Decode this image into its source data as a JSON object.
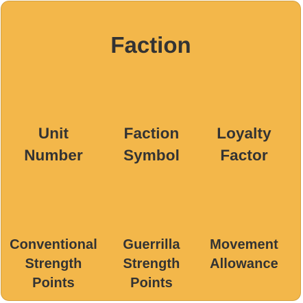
{
  "card": {
    "title": "Faction",
    "row1": [
      "Unit\nNumber",
      "Faction\nSymbol",
      "Loyalty\nFactor"
    ],
    "row2": [
      "Conventional\nStrength\nPoints",
      "Guerrilla\nStrength\nPoints",
      "Movement\nAllowance"
    ]
  },
  "colors": {
    "card_background": "#f3b74a",
    "text": "#333333"
  }
}
